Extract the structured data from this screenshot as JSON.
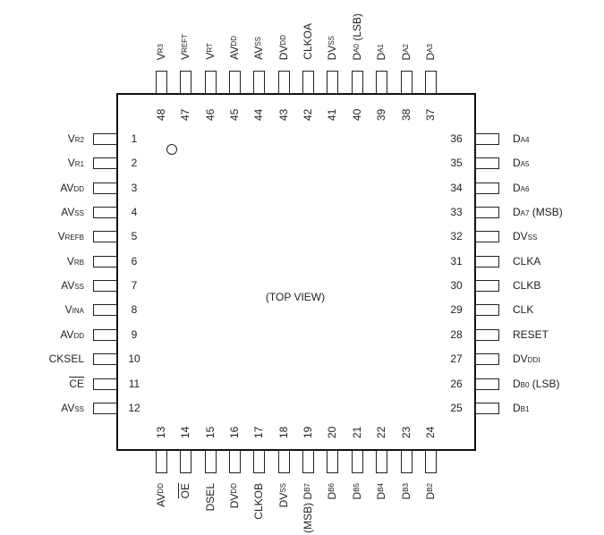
{
  "center_label": "(TOP VIEW)",
  "pins": {
    "left": [
      {
        "num": "1",
        "main": "V",
        "sub": "R2"
      },
      {
        "num": "2",
        "main": "V",
        "sub": "R1"
      },
      {
        "num": "3",
        "main": "AV",
        "sub": "DD"
      },
      {
        "num": "4",
        "main": "AV",
        "sub": "SS"
      },
      {
        "num": "5",
        "main": "V",
        "sub": "REFB"
      },
      {
        "num": "6",
        "main": "V",
        "sub": "RB"
      },
      {
        "num": "7",
        "main": "AV",
        "sub": "SS"
      },
      {
        "num": "8",
        "main": "V",
        "sub": "INA"
      },
      {
        "num": "9",
        "main": "AV",
        "sub": "DD"
      },
      {
        "num": "10",
        "main": "CKSEL"
      },
      {
        "num": "11",
        "main": "CE",
        "overline": true
      },
      {
        "num": "12",
        "main": "AV",
        "sub": "SS"
      }
    ],
    "bottom": [
      {
        "num": "13",
        "main": "AV",
        "sub": "DD"
      },
      {
        "num": "14",
        "main": "OE",
        "overline": true
      },
      {
        "num": "15",
        "main": "DSEL"
      },
      {
        "num": "16",
        "main": "DV",
        "sub": "DD"
      },
      {
        "num": "17",
        "main": "CLKOB"
      },
      {
        "num": "18",
        "main": "DV",
        "sub": "SS"
      },
      {
        "num": "19",
        "prefix": "(MSB) ",
        "main": "D",
        "sub": "B7"
      },
      {
        "num": "20",
        "main": "D",
        "sub": "B6"
      },
      {
        "num": "21",
        "main": "D",
        "sub": "B5"
      },
      {
        "num": "22",
        "main": "D",
        "sub": "B4"
      },
      {
        "num": "23",
        "main": "D",
        "sub": "B3"
      },
      {
        "num": "24",
        "main": "D",
        "sub": "B2"
      }
    ],
    "right": [
      {
        "num": "36",
        "main": "D",
        "sub": "A4"
      },
      {
        "num": "35",
        "main": "D",
        "sub": "A5"
      },
      {
        "num": "34",
        "main": "D",
        "sub": "A6"
      },
      {
        "num": "33",
        "main": "D",
        "sub": "A7",
        "suffix": " (MSB)"
      },
      {
        "num": "32",
        "main": "DV",
        "sub": "SS"
      },
      {
        "num": "31",
        "main": "CLKA"
      },
      {
        "num": "30",
        "main": "CLKB"
      },
      {
        "num": "29",
        "main": "CLK"
      },
      {
        "num": "28",
        "main": "RESET"
      },
      {
        "num": "27",
        "main": "DV",
        "sub": "DDI"
      },
      {
        "num": "26",
        "main": "D",
        "sub": "B0",
        "suffix": " (LSB)"
      },
      {
        "num": "25",
        "main": "D",
        "sub": "B1"
      }
    ],
    "top": [
      {
        "num": "48",
        "main": "V",
        "sub": "R3"
      },
      {
        "num": "47",
        "main": "V",
        "sub": "REFT"
      },
      {
        "num": "46",
        "main": "V",
        "sub": "RT"
      },
      {
        "num": "45",
        "main": "AV",
        "sub": "DD"
      },
      {
        "num": "44",
        "main": "AV",
        "sub": "SS"
      },
      {
        "num": "43",
        "main": "DV",
        "sub": "DD"
      },
      {
        "num": "42",
        "main": "CLKOA"
      },
      {
        "num": "41",
        "main": "DV",
        "sub": "SS"
      },
      {
        "num": "40",
        "main": "D",
        "sub": "A0",
        "suffix": " (LSB)"
      },
      {
        "num": "39",
        "main": "D",
        "sub": "A1"
      },
      {
        "num": "38",
        "main": "D",
        "sub": "A2"
      },
      {
        "num": "37",
        "main": "D",
        "sub": "A3"
      }
    ]
  }
}
